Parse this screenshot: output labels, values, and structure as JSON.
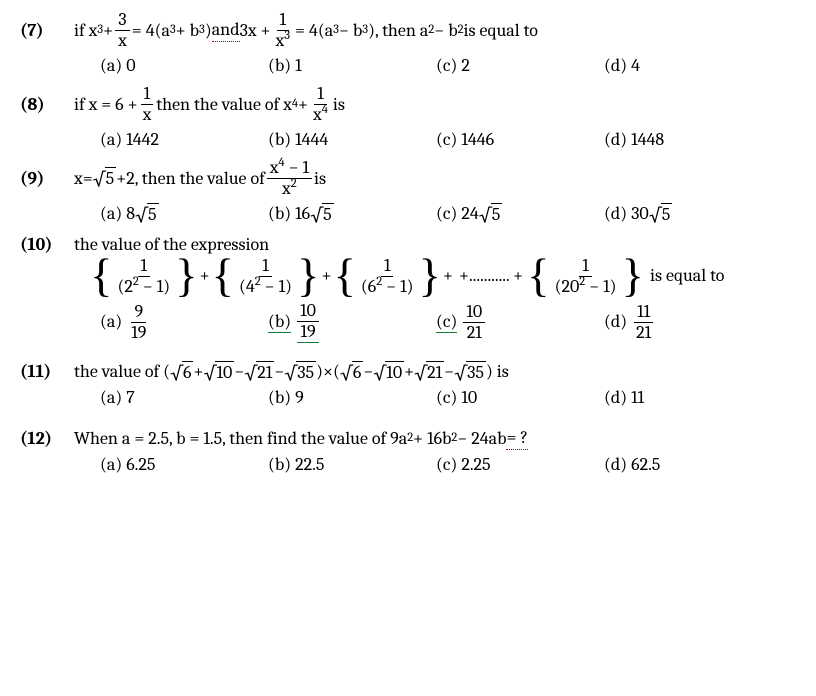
{
  "q7": {
    "num": "(7)",
    "t1": "if x",
    "e1": "3",
    "t2": " + ",
    "fr1n": "3",
    "fr1d": "x",
    "t3": " = 4(a",
    "e2": "3",
    "t4": " + b",
    "e3": "3",
    "t5": ") ",
    "uand": "and",
    "t6": " 3x + ",
    "fr2n": "1",
    "fr2d_a": "x",
    "fr2d_e": "3",
    "t7": " = 4(a",
    "e4": "3",
    "t8": " − b",
    "e5": "3",
    "t9": "), then a",
    "e6": "2",
    "t10": " − b",
    "e7": "2",
    "t11": " is equal to",
    "a": {
      "l": "(a)",
      "v": "0"
    },
    "b": {
      "l": "(b)",
      "v": "1"
    },
    "c": {
      "l": "(c)",
      "v": "2"
    },
    "d": {
      "l": "(d)",
      "v": "4"
    }
  },
  "q8": {
    "num": "(8)",
    "t1": "if x = 6 + ",
    "fr1n": "1",
    "fr1d": "x",
    "t2": "then the value of x",
    "e1": "4",
    "t3": " + ",
    "fr2n": "1",
    "fr2d_a": "x",
    "fr2d_e": "4",
    "t4": " is",
    "a": {
      "l": "(a)",
      "v": "1442"
    },
    "b": {
      "l": "(b)",
      "v": "1444"
    },
    "c": {
      "l": "(c)",
      "v": "1446"
    },
    "d": {
      "l": "(d)",
      "v": "1448"
    }
  },
  "q9": {
    "num": "(9)",
    "t1": "x= ",
    "sq": "5",
    "t2": " +2, then  the value of ",
    "frn_a": "x",
    "frn_e": "4",
    "frn_t": " − 1",
    "frd_a": "x",
    "frd_e": "2",
    "t3": " is",
    "a": {
      "l": "(a)",
      "v1": "8",
      "sq": "5"
    },
    "b": {
      "l": "(b)",
      "v1": "16",
      "sq": "5"
    },
    "c": {
      "l": "(c)",
      "v1": "24",
      "sq": "5"
    },
    "d": {
      "l": "(d)",
      "v1": "30",
      "sq": "5"
    }
  },
  "q10": {
    "num": "(10)",
    "t1": "the value of the expression",
    "terms": [
      {
        "d": "(2",
        "e": "2",
        "t": " − 1)"
      },
      {
        "d": "(4",
        "e": "2",
        "t": " − 1)"
      },
      {
        "d": "(6",
        "e": "2",
        "t": " − 1)"
      }
    ],
    "dots": "+........... +",
    "last": {
      "d": "(20",
      "e": "2",
      "t": " − 1)"
    },
    "tail": " is equal to",
    "a": {
      "l": "(a)",
      "n": "9",
      "d": "19"
    },
    "b": {
      "l": "(b)",
      "n": "10",
      "d": "19"
    },
    "c": {
      "l": "(c)",
      "n": "10",
      "d": "21"
    },
    "d": {
      "l": "(d)",
      "n": "11",
      "d": "21"
    }
  },
  "q11": {
    "num": "(11)",
    "t1": "the value of (",
    "s1": "6",
    "p1": "+",
    "s2": "10",
    "p2": "−",
    "s3": "21",
    "p3": "−",
    "s4": "35",
    "mid": ")×(",
    "s5": "6",
    "p4": "−",
    "s6": "10",
    "p5": "+",
    "s7": "21",
    "p6": "−",
    "s8": "35",
    "end": ") is",
    "a": {
      "l": "(a)",
      "v": "7"
    },
    "b": {
      "l": "(b)",
      "v": "9"
    },
    "c": {
      "l": "(c)",
      "v": "10"
    },
    "d": {
      "l": "(d)",
      "v": "11"
    }
  },
  "q12": {
    "num": "(12)",
    "t1": "When a = 2.5, b = 1.5, then find the value of 9a",
    "e1": "2",
    "t2": " + 16b",
    "e2": "2",
    "t3": " − 24ab",
    "eq": "= ?",
    "a": {
      "l": "(a)",
      "v": "6.25"
    },
    "b": {
      "l": "(b)",
      "v": "22.5"
    },
    "c": {
      "l": "(c)",
      "v": "2.25"
    },
    "d": {
      "l": "(d)",
      "v": "62.5"
    }
  }
}
